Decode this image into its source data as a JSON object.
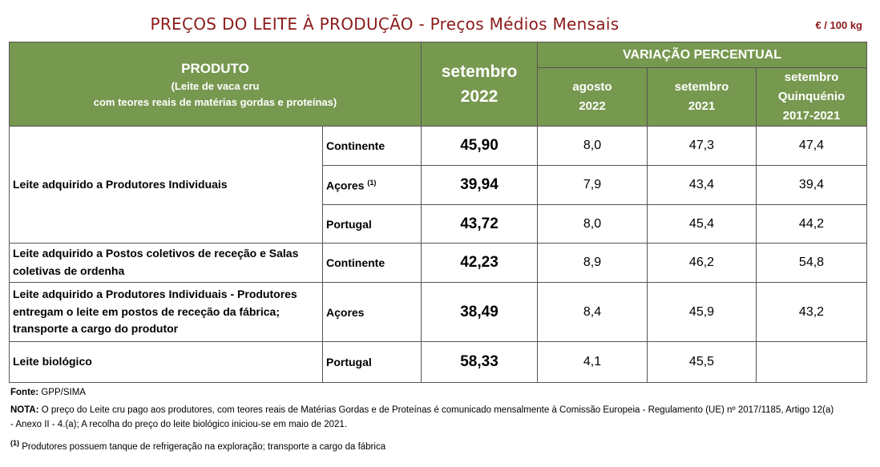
{
  "title": "PREÇOS DO LEITE À PRODUÇÃO - Preços Médios Mensais",
  "unit": "€ / 100 kg",
  "header": {
    "produto": "PRODUTO",
    "produto_sub_1": "(Leite de vaca cru",
    "produto_sub_2": "com teores reais de matérias gordas e proteínas)",
    "period_month": "setembro",
    "period_year": "2022",
    "variacao": "VARIAÇÃO PERCENTUAL",
    "col1_line1": "agosto",
    "col1_line2": "2022",
    "col2_line1": "setembro",
    "col2_line2": "2021",
    "col3_line1": "setembro",
    "col3_line2": "Quinquénio",
    "col3_line3": "2017-2021"
  },
  "rows": [
    {
      "product": "Leite adquirido a Produtores Individuais",
      "region": "Continente",
      "footnote": "",
      "price": "45,90",
      "var_ago": "8,0",
      "var_set": "47,3",
      "var_quinq": "47,4"
    },
    {
      "product": "",
      "region": "Açores",
      "footnote": "(1)",
      "price": "39,94",
      "var_ago": "7,9",
      "var_set": "43,4",
      "var_quinq": "39,4"
    },
    {
      "product": "",
      "region": "Portugal",
      "footnote": "",
      "price": "43,72",
      "var_ago": "8,0",
      "var_set": "45,4",
      "var_quinq": "44,2"
    },
    {
      "product": "Leite adquirido a Postos coletivos de receção e Salas coletivas de ordenha",
      "region": "Continente",
      "footnote": "",
      "price": "42,23",
      "var_ago": "8,9",
      "var_set": "46,2",
      "var_quinq": "54,8"
    },
    {
      "product": "Leite adquirido a Produtores Individuais - Produtores entregam o leite em postos de receção da fábrica; transporte a cargo do produtor",
      "region": "Açores",
      "footnote": "",
      "price": "38,49",
      "var_ago": "8,4",
      "var_set": "45,9",
      "var_quinq": "43,2"
    },
    {
      "product": "Leite biológico",
      "region": "Portugal",
      "footnote": "",
      "price": "58,33",
      "var_ago": "4,1",
      "var_set": "45,5",
      "var_quinq": ""
    }
  ],
  "footer": {
    "fonte_label": "Fonte:",
    "fonte_text": "GPP/SIMA",
    "nota_label": "NOTA:",
    "nota_text": "O preço do Leite cru pago aos produtores, com teores reais de Matérias Gordas e de Proteínas é comunicado mensalmente à Comissão Europeia - Regulamento (UE) nº 2017/1185, Artigo 12(a) - Anexo II - 4.(a); A recolha do preço do leite biológico iniciou-se em maio de 2021.",
    "footnote_mark": "(1)",
    "footnote_text": "Produtores possuem tanque de refrigeração na exploração; transporte a cargo da fábrica"
  }
}
